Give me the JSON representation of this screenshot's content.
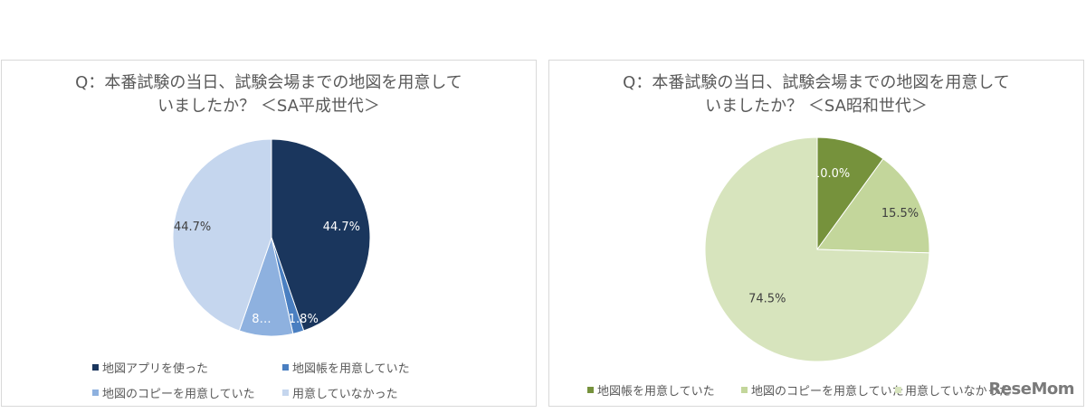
{
  "charts": [
    {
      "title_line1": "Q：本番試験の当日、試験会場までの地図を用意して",
      "title_line2": "いましたか？ ＜SA平成世代＞"
    },
    {
      "title_line1": "Q：本番試験の当日、試験会場までの地図を用意して",
      "title_line2": "いましたか？ ＜SA昭和世代＞"
    }
  ],
  "watermark": "ReseMom",
  "chart_data": [
    {
      "type": "pie",
      "title": "Q：本番試験の当日、試験会場までの地図を用意していましたか？ ＜SA平成世代＞",
      "slices": [
        {
          "label": "地図アプリを使った",
          "value": 44.7,
          "display": "44.7%",
          "color": "#1a365d"
        },
        {
          "label": "地図帳を用意していた",
          "value": 1.8,
          "display": "1.8%",
          "color": "#4a7fc1"
        },
        {
          "label": "地図のコピーを用意していた",
          "value": 8.8,
          "display": "8…",
          "color": "#8eb1df"
        },
        {
          "label": "用意していなかった",
          "value": 44.7,
          "display": "44.7%",
          "color": "#c5d6ee"
        }
      ],
      "legend_position": "bottom"
    },
    {
      "type": "pie",
      "title": "Q：本番試験の当日、試験会場までの地図を用意していましたか？ ＜SA昭和世代＞",
      "slices": [
        {
          "label": "地図帳を用意していた",
          "value": 10.0,
          "display": "10.0%",
          "color": "#76923c"
        },
        {
          "label": "地図のコピーを用意していた",
          "value": 15.5,
          "display": "15.5%",
          "color": "#c3d69b"
        },
        {
          "label": "用意していなかった",
          "value": 74.5,
          "display": "74.5%",
          "color": "#d7e4bd"
        }
      ],
      "legend_position": "bottom"
    }
  ]
}
